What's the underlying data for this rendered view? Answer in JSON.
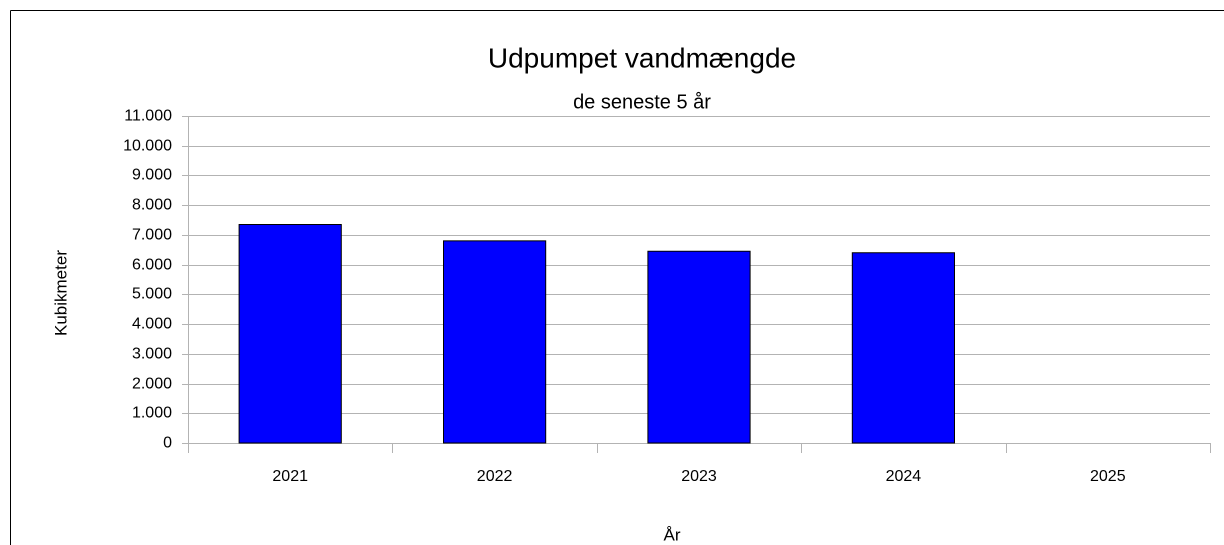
{
  "chart_data": {
    "type": "bar",
    "title": "Udpumpet vandmængde",
    "subtitle": "de seneste 5 år",
    "x_label": "År",
    "y_label": "Kubikmeter",
    "categories": [
      "2021",
      "2022",
      "2023",
      "2024",
      "2025"
    ],
    "values": [
      7350,
      6800,
      6450,
      6400,
      null
    ],
    "color": "#0000ff",
    "ylim": [
      0,
      11000
    ],
    "yticks": [
      0,
      {
        "value": 1000,
        "label": "1.000"
      },
      {
        "value": 2000,
        "label": "2.000"
      },
      {
        "value": 3000,
        "label": "3.000"
      },
      {
        "value": 4000,
        "label": "4.000"
      },
      {
        "value": 5000,
        "label": "5.000"
      },
      {
        "value": 6000,
        "label": "6.000"
      },
      {
        "value": 7000,
        "label": "7.000"
      },
      {
        "value": 8000,
        "label": "8.000"
      },
      {
        "value": 9000,
        "label": "9.000"
      },
      {
        "value": 10000,
        "label": "10.000"
      },
      {
        "value": 11000,
        "label": "11.000"
      }
    ],
    "grid": true
  }
}
